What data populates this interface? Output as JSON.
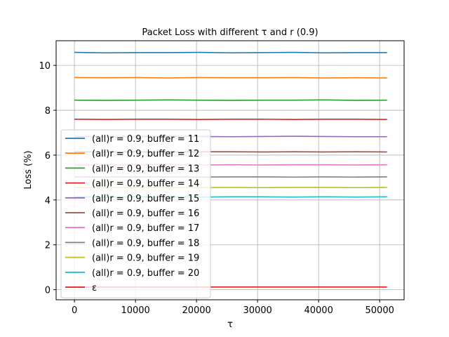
{
  "chart_data": {
    "type": "line",
    "title": "Packet Loss with different τ and r (0.9)",
    "xlabel": "τ",
    "ylabel": "Loss (%)",
    "xlim": [
      -3000,
      54000
    ],
    "ylim": [
      -0.45,
      11.1
    ],
    "xticks": [
      0,
      10000,
      20000,
      30000,
      40000,
      50000
    ],
    "yticks": [
      0,
      2,
      4,
      6,
      8,
      10
    ],
    "x_range": [
      0,
      51200
    ],
    "grid": true,
    "legend_position": "lower-left",
    "series": [
      {
        "name": "(all)r = 0.9, buffer = 11",
        "color": "#1f77b4",
        "values": [
          10.58,
          10.56,
          10.57,
          10.57,
          10.58,
          10.56,
          10.57,
          10.58,
          10.56,
          10.57,
          10.57
        ]
      },
      {
        "name": "(all)r = 0.9, buffer = 12",
        "color": "#ff7f0e",
        "values": [
          9.46,
          9.45,
          9.46,
          9.44,
          9.46,
          9.45,
          9.45,
          9.46,
          9.44,
          9.45,
          9.44
        ]
      },
      {
        "name": "(all)r = 0.9, buffer = 13",
        "color": "#2ca02c",
        "values": [
          8.45,
          8.44,
          8.45,
          8.46,
          8.45,
          8.44,
          8.45,
          8.45,
          8.46,
          8.44,
          8.45
        ]
      },
      {
        "name": "(all)r = 0.9, buffer = 14",
        "color": "#d62728",
        "values": [
          7.6,
          7.59,
          7.6,
          7.6,
          7.59,
          7.6,
          7.6,
          7.59,
          7.6,
          7.6,
          7.59
        ]
      },
      {
        "name": "(all)r = 0.9, buffer = 15",
        "color": "#9467bd",
        "values": [
          6.83,
          6.82,
          6.83,
          6.84,
          6.83,
          6.82,
          6.83,
          6.84,
          6.83,
          6.82,
          6.82
        ]
      },
      {
        "name": "(all)r = 0.9, buffer = 16",
        "color": "#8c564b",
        "values": [
          6.15,
          6.14,
          6.15,
          6.14,
          6.15,
          6.15,
          6.14,
          6.15,
          6.14,
          6.15,
          6.14
        ]
      },
      {
        "name": "(all)r = 0.9, buffer = 17",
        "color": "#e377c2",
        "values": [
          5.57,
          5.56,
          5.57,
          5.57,
          5.56,
          5.57,
          5.56,
          5.57,
          5.57,
          5.56,
          5.57
        ]
      },
      {
        "name": "(all)r = 0.9, buffer = 18",
        "color": "#7f7f7f",
        "values": [
          5.03,
          5.02,
          5.03,
          5.03,
          5.02,
          5.03,
          5.03,
          5.02,
          5.03,
          5.02,
          5.03
        ]
      },
      {
        "name": "(all)r = 0.9, buffer = 19",
        "color": "#bcbd22",
        "values": [
          4.56,
          4.55,
          4.56,
          4.56,
          4.55,
          4.56,
          4.55,
          4.56,
          4.56,
          4.55,
          4.56
        ]
      },
      {
        "name": "(all)r = 0.9, buffer = 20",
        "color": "#17becf",
        "values": [
          4.14,
          4.13,
          4.14,
          4.14,
          4.13,
          4.14,
          4.14,
          4.13,
          4.14,
          4.13,
          4.14
        ]
      },
      {
        "name": "ε",
        "color": "#e31a1c",
        "values": [
          0.12,
          0.12,
          0.12,
          0.12,
          0.12,
          0.12,
          0.12,
          0.12,
          0.12,
          0.12,
          0.12
        ]
      }
    ]
  }
}
